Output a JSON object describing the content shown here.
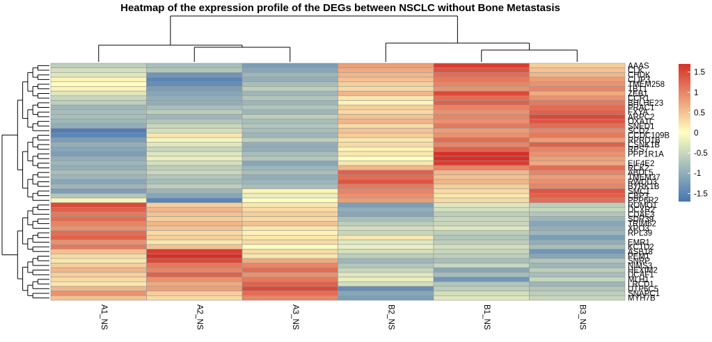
{
  "chart_data": {
    "type": "heatmap",
    "title": "Heatmap of the expression profile of the DEGs between NSCLC without Bone Metastasis",
    "columns": [
      "A1_NS",
      "A2_NS",
      "A3_NS",
      "B2_NS",
      "B1_NS",
      "B3_NS"
    ],
    "rows": [
      "AAAS",
      "CLK",
      "CHDK",
      "CLIP3",
      "TMEM258",
      "TBT1",
      "ZEB1",
      "CCR1",
      "BHLHE23",
      "PRAC1",
      "FXYA",
      "ARPC2",
      "OXA1L",
      "SNED1",
      "SCD2",
      "CCDC109B",
      "RPRD1B",
      "CSNK1B",
      "RPS7",
      "PPP1R1A",
      "ATP1B1",
      "EIF4E2",
      "RCK2",
      "ABDL5",
      "TMEM37",
      "RWDD3",
      "BYRK1B",
      "SMC1",
      "CBP3",
      "PPP6R2",
      "ROMO1",
      "DCXR2",
      "CDAE3",
      "SDR39",
      "TRIM62",
      "XPO3",
      "RPL39",
      "FAM59",
      "EMR1",
      "KCTD2",
      "ASB18",
      "PEMT",
      "SNRP",
      "NIMS3",
      "HEXIM2",
      "DCAF1",
      "MLH1",
      "LRCD1",
      "UTP6C5",
      "SNAPC1",
      "MYH7B"
    ],
    "visible_row_labels": [
      "AAAS",
      "CLK",
      "CHDK",
      "CLIP3",
      "TMEM258",
      "TBT1",
      "ZEB1",
      "CCR1",
      "BHLHE23",
      "PRAC1",
      "FXYA",
      "ARPC2",
      "OXA1L",
      "SNED1",
      "SCD2",
      "CCDC109B",
      "RPRD1B",
      "CSNK1B",
      "RPS7",
      "PPP1R1A",
      "EIF4E2",
      "RCK2",
      "ABDL5",
      "TMEM37",
      "RWDD3",
      "BYRK1B",
      "SMC1",
      "CBP3",
      "PPP6R2",
      "ROMO1",
      "DCXR2",
      "CDAE3",
      "SDR39",
      "TRIM62",
      "XPO3",
      "RPL39",
      "EMR1",
      "KCTD2",
      "ASB18",
      "PEMT",
      "SNRP",
      "NIMS3",
      "HEXIM2",
      "DCAF1",
      "MLH1",
      "LRCD1",
      "UTP6C5",
      "SNAPC1",
      "MYH7B"
    ],
    "values": [
      [
        -0.6,
        -0.8,
        -1.2,
        0.8,
        1.6,
        0.4
      ],
      [
        -0.4,
        -0.7,
        -1.1,
        0.7,
        1.4,
        0.5
      ],
      [
        -0.3,
        -1.3,
        -0.9,
        0.6,
        1.2,
        0.6
      ],
      [
        0.1,
        -1.5,
        -1.0,
        0.5,
        1.1,
        0.8
      ],
      [
        0.0,
        -1.4,
        -0.8,
        0.4,
        1.0,
        0.9
      ],
      [
        0.1,
        -1.2,
        -0.6,
        0.3,
        0.9,
        1.0
      ],
      [
        -0.3,
        -1.1,
        -0.9,
        0.6,
        1.5,
        0.7
      ],
      [
        -0.5,
        -1.0,
        -0.7,
        0.2,
        1.2,
        0.9
      ],
      [
        -0.6,
        -1.0,
        -0.9,
        0.1,
        1.3,
        1.1
      ],
      [
        -0.9,
        -0.8,
        -0.7,
        0.4,
        1.0,
        1.2
      ],
      [
        -0.8,
        -0.6,
        -0.9,
        0.3,
        0.9,
        1.3
      ],
      [
        -0.8,
        -0.9,
        -0.6,
        0.5,
        1.0,
        1.5
      ],
      [
        -0.9,
        -0.7,
        -0.8,
        0.6,
        0.9,
        1.4
      ],
      [
        -1.0,
        -0.5,
        -0.7,
        0.3,
        1.1,
        1.2
      ],
      [
        -1.6,
        -0.4,
        -0.8,
        0.5,
        0.8,
        1.0
      ],
      [
        -1.5,
        0.2,
        -0.9,
        0.4,
        0.9,
        1.1
      ],
      [
        -1.2,
        -0.1,
        -0.6,
        0.2,
        1.2,
        0.8
      ],
      [
        -1.0,
        -0.3,
        -1.0,
        0.3,
        1.0,
        1.3
      ],
      [
        -1.1,
        -0.5,
        -1.0,
        0.1,
        1.3,
        1.0
      ],
      [
        -1.2,
        -0.3,
        -0.8,
        0.2,
        1.7,
        0.9
      ],
      [
        -1.0,
        -0.2,
        -0.7,
        0.0,
        1.8,
        0.8
      ],
      [
        -0.9,
        -0.4,
        -1.1,
        0.2,
        1.6,
        0.7
      ],
      [
        -1.0,
        -0.6,
        -0.9,
        0.6,
        1.0,
        1.2
      ],
      [
        -0.8,
        -0.5,
        -0.8,
        1.3,
        0.6,
        1.0
      ],
      [
        -0.9,
        -0.7,
        -1.0,
        1.2,
        0.5,
        0.8
      ],
      [
        -1.1,
        -0.8,
        -0.9,
        1.4,
        0.6,
        0.9
      ],
      [
        -0.9,
        -0.6,
        -0.8,
        1.1,
        0.4,
        1.0
      ],
      [
        -1.2,
        -0.9,
        0.1,
        1.0,
        0.3,
        1.4
      ],
      [
        -0.7,
        -1.1,
        -0.2,
        0.9,
        0.2,
        1.3
      ],
      [
        0.1,
        -1.5,
        0.0,
        0.8,
        0.3,
        1.2
      ],
      [
        1.5,
        0.4,
        0.2,
        -1.2,
        -0.3,
        -0.6
      ],
      [
        1.3,
        0.6,
        0.3,
        -1.0,
        -0.4,
        -0.5
      ],
      [
        1.1,
        0.5,
        0.4,
        -1.1,
        -0.6,
        -0.7
      ],
      [
        1.2,
        0.4,
        0.3,
        -0.8,
        -0.5,
        -0.9
      ],
      [
        1.0,
        0.6,
        0.5,
        -0.6,
        -0.5,
        -1.1
      ],
      [
        0.9,
        0.5,
        0.2,
        -0.4,
        -0.3,
        -1.0
      ],
      [
        1.2,
        0.3,
        0.1,
        -0.5,
        -0.6,
        -0.9
      ],
      [
        1.3,
        0.4,
        0.2,
        0.2,
        -0.7,
        -1.2
      ],
      [
        0.9,
        0.2,
        0.3,
        -0.3,
        -0.6,
        -1.0
      ],
      [
        1.1,
        0.5,
        0.0,
        -0.2,
        -0.4,
        -0.8
      ],
      [
        0.5,
        1.6,
        0.3,
        -0.4,
        -0.5,
        -1.3
      ],
      [
        0.3,
        1.7,
        0.2,
        -0.6,
        -0.6,
        -1.1
      ],
      [
        0.2,
        1.5,
        0.7,
        -0.9,
        -0.8,
        -0.7
      ],
      [
        0.4,
        1.1,
        1.0,
        -0.7,
        -0.5,
        -0.9
      ],
      [
        0.6,
        1.0,
        1.2,
        -0.5,
        -1.1,
        -0.6
      ],
      [
        0.4,
        1.3,
        0.9,
        -0.3,
        -0.8,
        -0.8
      ],
      [
        0.3,
        0.9,
        1.1,
        -0.2,
        -1.3,
        -0.5
      ],
      [
        0.2,
        0.7,
        1.3,
        -0.4,
        -0.7,
        -0.9
      ],
      [
        0.6,
        0.8,
        1.5,
        -1.4,
        -0.6,
        -0.7
      ],
      [
        0.9,
        0.4,
        1.2,
        -1.1,
        -0.4,
        -0.6
      ],
      [
        0.5,
        0.3,
        1.0,
        -1.2,
        -0.3,
        -0.5
      ]
    ],
    "color_scale": {
      "min": -1.7,
      "max": 1.7,
      "low": "#4575b4",
      "mid": "#ffffbf",
      "high": "#d73027",
      "ticks": [
        "1.5",
        "1",
        "0.5",
        "0",
        "-0.5",
        "-1",
        "-1.5"
      ]
    },
    "cell_border": "#999999",
    "dendrograms": [
      "top (columns)",
      "left (rows)"
    ]
  }
}
